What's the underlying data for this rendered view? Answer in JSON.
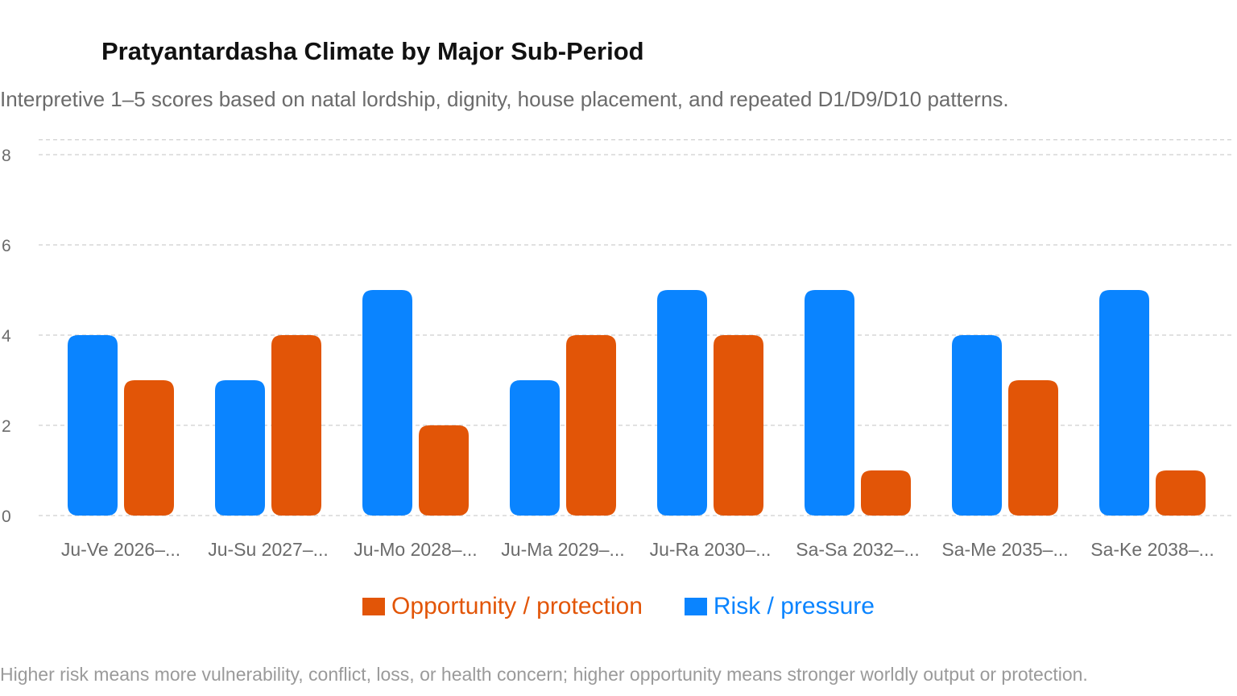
{
  "chart_data": {
    "type": "bar",
    "title": "Pratyantardasha Climate by Major Sub-Period",
    "subtitle": "Interpretive 1–5 scores based on natal lordship, dignity, house placement, and repeated D1/D9/D10 patterns.",
    "footnote": "Higher risk means more vulnerability, conflict, loss, or health concern; higher opportunity means stronger worldly output or protection.",
    "categories": [
      "Ju-Ve 2026–...",
      "Ju-Su 2027–...",
      "Ju-Mo 2028–...",
      "Ju-Ma 2029–...",
      "Ju-Ra 2030–...",
      "Sa-Sa 2032–...",
      "Sa-Me 2035–...",
      "Sa-Ke 2038–..."
    ],
    "series": [
      {
        "name": "Risk / pressure",
        "color": "#0a84ff",
        "values": [
          4,
          3,
          5,
          3,
          5,
          5,
          4,
          5
        ]
      },
      {
        "name": "Opportunity / protection",
        "color": "#e25507",
        "values": [
          3,
          4,
          2,
          4,
          4,
          1,
          3,
          1
        ]
      }
    ],
    "legend_order": [
      "Opportunity / protection",
      "Risk / pressure"
    ],
    "yticks": [
      0,
      2,
      4,
      6,
      8
    ],
    "ylim": [
      0,
      8.33
    ],
    "grid": true,
    "grid_style": "dashed",
    "legend_position": "bottom-center"
  }
}
